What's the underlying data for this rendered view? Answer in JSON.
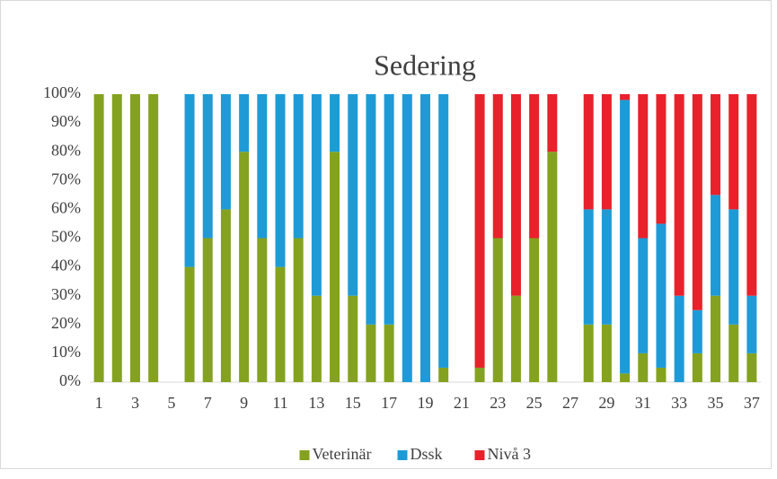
{
  "chart_data": {
    "type": "stacked_bar",
    "title": "Sedering",
    "categories": [
      "1",
      null,
      "3",
      null,
      "5",
      null,
      "7",
      null,
      "9",
      null,
      "11",
      null,
      "13",
      null,
      "15",
      null,
      "17",
      null,
      "19",
      null,
      "21",
      null,
      "23",
      null,
      "25",
      null,
      "27",
      null,
      "29",
      null,
      "31",
      null,
      "33",
      null,
      "35",
      null,
      "37"
    ],
    "series": [
      {
        "name": "Veterinär",
        "color": "#84a21f",
        "values": [
          100,
          100,
          100,
          100,
          0,
          40,
          50,
          60,
          80,
          50,
          40,
          50,
          30,
          80,
          30,
          20,
          20,
          0,
          0,
          5,
          0,
          5,
          50,
          30,
          50,
          80,
          0,
          20,
          20,
          3,
          10,
          5,
          0,
          10,
          30,
          20,
          10
        ]
      },
      {
        "name": "Dssk",
        "color": "#1e9bd7",
        "values": [
          0,
          0,
          0,
          0,
          0,
          60,
          50,
          40,
          20,
          50,
          60,
          50,
          70,
          20,
          70,
          80,
          80,
          100,
          100,
          95,
          0,
          0,
          0,
          0,
          0,
          0,
          0,
          40,
          40,
          95,
          40,
          50,
          30,
          15,
          35,
          40,
          20
        ]
      },
      {
        "name": "Nivå 3",
        "color": "#e8212b",
        "values": [
          0,
          0,
          0,
          0,
          0,
          0,
          0,
          0,
          0,
          0,
          0,
          0,
          0,
          0,
          0,
          0,
          0,
          0,
          0,
          0,
          0,
          95,
          50,
          70,
          50,
          20,
          0,
          40,
          40,
          2,
          50,
          45,
          70,
          75,
          35,
          40,
          70
        ]
      }
    ],
    "ylim": [
      0,
      100
    ],
    "yticks": [
      {
        "value": 0,
        "label": "0%"
      },
      {
        "value": 10,
        "label": "10%"
      },
      {
        "value": 20,
        "label": "20%"
      },
      {
        "value": 30,
        "label": "30%"
      },
      {
        "value": 40,
        "label": "40%"
      },
      {
        "value": 50,
        "label": "50%"
      },
      {
        "value": 60,
        "label": "60%"
      },
      {
        "value": 70,
        "label": "70%"
      },
      {
        "value": 80,
        "label": "80%"
      },
      {
        "value": 90,
        "label": "90%"
      },
      {
        "value": 100,
        "label": "100%"
      }
    ],
    "legend": "bottom"
  }
}
